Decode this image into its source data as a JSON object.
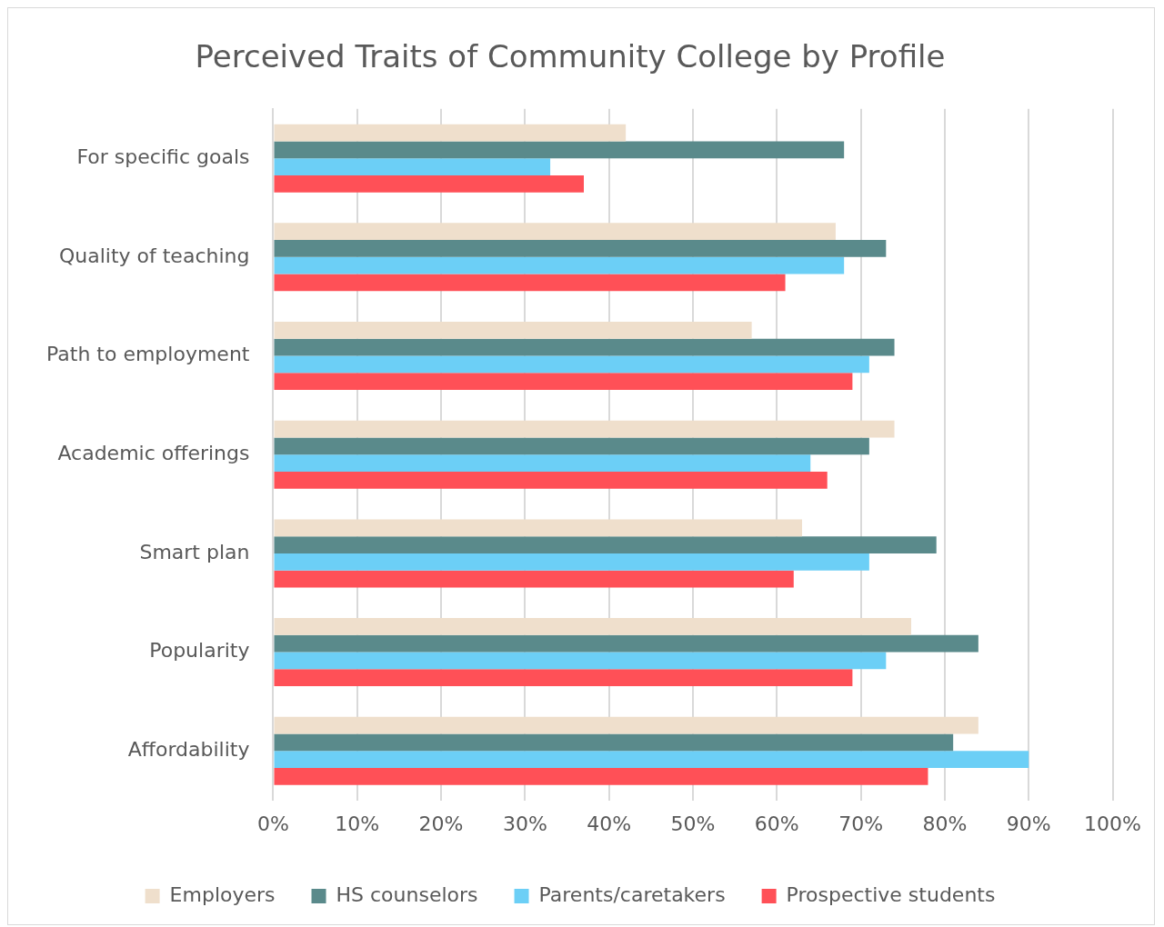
{
  "chart_data": {
    "type": "bar",
    "orientation": "horizontal",
    "title": "Perceived Traits of Community College by Profile",
    "categories": [
      "For specific goals",
      "Quality of teaching",
      "Path to employment",
      "Academic offerings",
      "Smart plan",
      "Popularity",
      "Affordability"
    ],
    "series": [
      {
        "name": "Employers",
        "color": "#efdfcc",
        "values": [
          42,
          67,
          57,
          74,
          63,
          76,
          84
        ]
      },
      {
        "name": "HS counselors",
        "color": "#5a8a8b",
        "values": [
          68,
          73,
          74,
          71,
          79,
          84,
          81
        ]
      },
      {
        "name": "Parents/caretakers",
        "color": "#6ccff6",
        "values": [
          33,
          68,
          71,
          64,
          71,
          73,
          90
        ]
      },
      {
        "name": "Prospective students",
        "color": "#ff5057",
        "values": [
          37,
          61,
          69,
          66,
          62,
          69,
          78
        ]
      }
    ],
    "xlim": [
      0,
      100
    ],
    "xticks": [
      {
        "value": 0,
        "label": "0%"
      },
      {
        "value": 10,
        "label": "10%"
      },
      {
        "value": 20,
        "label": "20%"
      },
      {
        "value": 30,
        "label": "30%"
      },
      {
        "value": 40,
        "label": "40%"
      },
      {
        "value": 50,
        "label": "50%"
      },
      {
        "value": 60,
        "label": "60%"
      },
      {
        "value": 70,
        "label": "70%"
      },
      {
        "value": 80,
        "label": "80%"
      },
      {
        "value": 90,
        "label": "90%"
      },
      {
        "value": 100,
        "label": "100%"
      }
    ],
    "grid": "x",
    "legend": "bottom"
  }
}
